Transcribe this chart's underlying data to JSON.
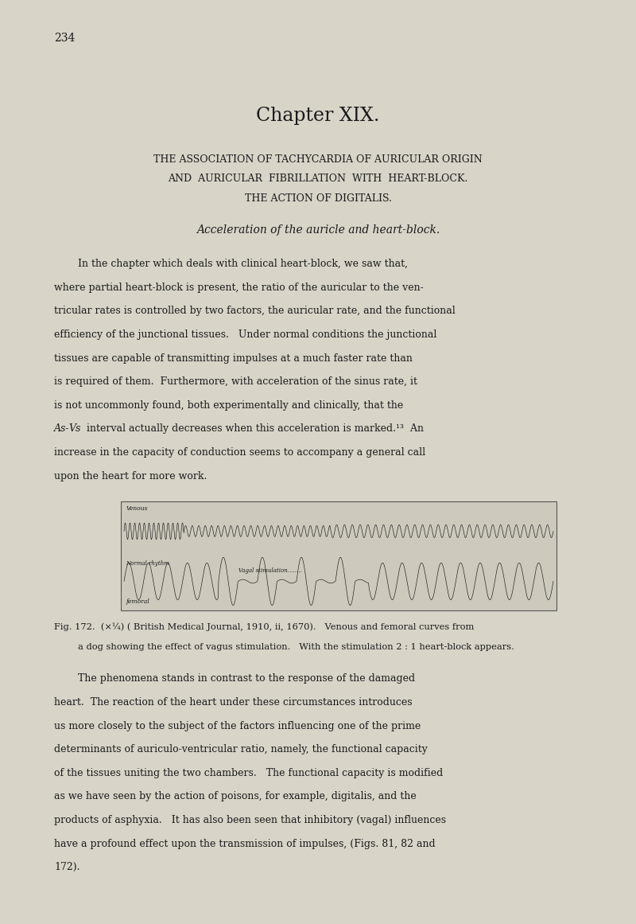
{
  "page_number": "234",
  "background_color": "#d8d4c8",
  "text_color": "#1a1a1a",
  "page_width": 8.0,
  "page_height": 11.61,
  "chapter_title": "Chapter XIX.",
  "subtitle_line1": "THE ASSOCIATION OF TACHYCARDIA OF AURICULAR ORIGIN",
  "subtitle_line2": "AND  AURICULAR  FIBRILLATION  WITH  HEART-BLOCK.",
  "subtitle_line3": "THE ACTION OF DIGITALIS.",
  "section_title": "Acceleration of the auricle and heart-block.",
  "p1_lines": [
    [
      "In the chapter which deals with clinical heart-block, we saw that,",
      false,
      true
    ],
    [
      "where partial heart-block is present, the ratio of the auricular to the ven-",
      false,
      false
    ],
    [
      "tricular rates is controlled by two factors, the auricular rate, and the functional",
      false,
      false
    ],
    [
      "efficiency of the junctional tissues.   Under normal conditions the junctional",
      false,
      false
    ],
    [
      "tissues are capable of transmitting impulses at a much faster rate than",
      false,
      false
    ],
    [
      "is required of them.  Furthermore, with acceleration of the sinus rate, it",
      false,
      false
    ],
    [
      "is not uncommonly found, both experimentally and clinically, that the",
      false,
      false
    ],
    [
      "ITALIC_AS_VS",
      true,
      false
    ],
    [
      "increase in the capacity of conduction seems to accompany a general call",
      false,
      false
    ],
    [
      "upon the heart for more work.",
      false,
      false
    ]
  ],
  "as_vs_line": " interval actually decreases when this acceleration is marked.¹³  An",
  "fig_caption_line1": "Fig. 172.  (×¼) ( British Medical Journal, 1910, ii, 1670).   Venous and femoral curves from",
  "fig_caption_line2": "a dog showing the effect of vagus stimulation.   With the stimulation 2 : 1 heart-block appears.",
  "p2_lines": [
    [
      "The phenomena stands in contrast to the response of the damaged",
      true
    ],
    [
      "heart.  The reaction of the heart under these circumstances introduces",
      false
    ],
    [
      "us more closely to the subject of the factors influencing one of the prime",
      false
    ],
    [
      "determinants of auriculo-ventricular ratio, namely, the functional capacity",
      false
    ],
    [
      "of the tissues uniting the two chambers.   The functional capacity is modified",
      false
    ],
    [
      "as we have seen by the action of poisons, for example, digitalis, and the",
      false
    ],
    [
      "products of asphyxia.   It has also been seen that inhibitory (vagal) influences",
      false
    ],
    [
      "have a profound effect upon the transmission of impulses, (Figs. 81, 82 and",
      false
    ],
    [
      "172).",
      false
    ]
  ],
  "fig_label_venous": "Venous",
  "fig_label_normal": "Normal rhythm",
  "fig_label_vagal": "Vagal stimulation........",
  "fig_label_femoral": "femoral"
}
